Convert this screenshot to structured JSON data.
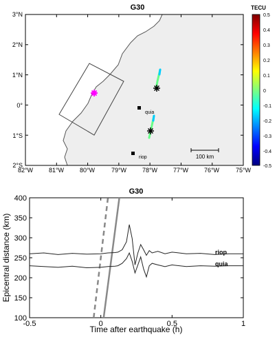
{
  "map": {
    "title": "G30",
    "colorbar": {
      "label": "TECU",
      "ticks": [
        "0.5",
        "0.4",
        "0.3",
        "0.2",
        "0.1",
        "0",
        "-0.1",
        "-0.2",
        "-0.3",
        "-0.4",
        "-0.5"
      ],
      "range": [
        -0.5,
        0.5
      ],
      "colors": [
        "#00007f",
        "#0000ff",
        "#007fff",
        "#00ffff",
        "#7fff7f",
        "#ffff00",
        "#ff7f00",
        "#ff0000",
        "#7f0000"
      ]
    },
    "lon_ticks": [
      "82°W",
      "81°W",
      "80°W",
      "79°W",
      "78°W",
      "77°W",
      "76°W",
      "75°W"
    ],
    "lat_ticks": [
      "3°N",
      "2°N",
      "1°N",
      "0°",
      "1°S",
      "2°S"
    ],
    "scale_bar": "100 km",
    "stations": [
      {
        "name": "quia",
        "lon": -78.55,
        "lat": -0.2
      },
      {
        "name": "riop",
        "lon": -78.65,
        "lat": -1.65
      }
    ],
    "epicenter": {
      "lon": -79.95,
      "lat": 0.35,
      "color": "#ff00ff"
    },
    "colors": {
      "land": "#eeeeee",
      "ocean": "#ffffff",
      "coast": "#555555"
    }
  },
  "chart_data": [
    {
      "type": "line",
      "title": "G30",
      "xlabel": "Time after earthquake (h)",
      "ylabel": "Epicentral distance (km)",
      "xlim": [
        -0.5,
        1
      ],
      "ylim": [
        100,
        400
      ],
      "xticks": [
        -0.5,
        0,
        0.5,
        1
      ],
      "yticks": [
        100,
        150,
        200,
        250,
        300,
        350,
        400
      ],
      "series": [
        {
          "name": "riop",
          "x": [
            -0.5,
            -0.4,
            -0.3,
            -0.2,
            -0.1,
            0,
            0.05,
            0.1,
            0.12,
            0.15,
            0.18,
            0.2,
            0.22,
            0.24,
            0.26,
            0.28,
            0.3,
            0.32,
            0.34,
            0.36,
            0.4,
            0.45,
            0.5,
            0.6,
            0.7,
            0.8,
            0.9,
            1
          ],
          "y": [
            260,
            262,
            258,
            261,
            259,
            260,
            262,
            263,
            264,
            270,
            290,
            333,
            298,
            232,
            262,
            283,
            270,
            256,
            268,
            262,
            266,
            260,
            264,
            260,
            261,
            258,
            260,
            260
          ]
        },
        {
          "name": "quia",
          "x": [
            -0.5,
            -0.4,
            -0.3,
            -0.2,
            -0.1,
            0,
            0.05,
            0.1,
            0.12,
            0.15,
            0.18,
            0.2,
            0.22,
            0.24,
            0.26,
            0.28,
            0.3,
            0.32,
            0.34,
            0.36,
            0.4,
            0.45,
            0.5,
            0.6,
            0.7,
            0.8,
            0.9,
            1
          ],
          "y": [
            230,
            228,
            226,
            229,
            225,
            226,
            228,
            229,
            230,
            236,
            248,
            262,
            241,
            212,
            232,
            252,
            222,
            202,
            230,
            236,
            232,
            228,
            232,
            228,
            230,
            229,
            230,
            230
          ]
        }
      ],
      "reference_lines": [
        {
          "style": "dashed",
          "x": [
            -0.05,
            0.05
          ],
          "y": [
            100,
            400
          ]
        },
        {
          "style": "solid",
          "x": [
            0.02,
            0.13
          ],
          "y": [
            100,
            400
          ]
        }
      ]
    }
  ]
}
